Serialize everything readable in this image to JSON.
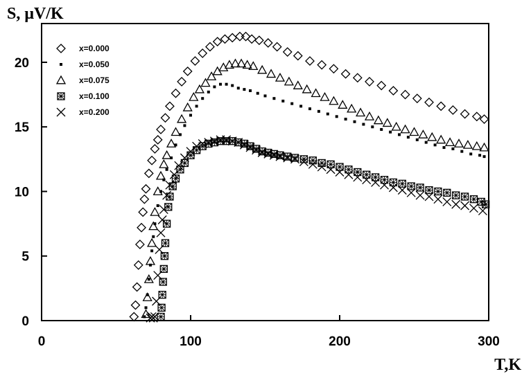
{
  "chart_data": {
    "type": "scatter",
    "xlabel": "T,K",
    "ylabel": "S, μV/K",
    "xlim": [
      0,
      300
    ],
    "ylim": [
      0,
      23
    ],
    "xticks": [
      "0",
      "100",
      "200",
      "300"
    ],
    "yticks": [
      "0",
      "5",
      "10",
      "15",
      "20"
    ],
    "legend_position": "top-left",
    "series": [
      {
        "name": "x=0.000",
        "marker": "diamond",
        "x": [
          62,
          63,
          64,
          65,
          66,
          67,
          68,
          69,
          70,
          72,
          74,
          76,
          78,
          80,
          83,
          86,
          90,
          94,
          98,
          103,
          108,
          113,
          118,
          123,
          128,
          133,
          137,
          141,
          146,
          152,
          158,
          165,
          172,
          180,
          188,
          196,
          204,
          212,
          220,
          228,
          236,
          244,
          252,
          260,
          268,
          276,
          284,
          292,
          297
        ],
        "y": [
          0.3,
          1.2,
          2.6,
          4.3,
          5.9,
          7.2,
          8.4,
          9.4,
          10.2,
          11.4,
          12.4,
          13.3,
          14.0,
          14.8,
          15.7,
          16.6,
          17.6,
          18.5,
          19.3,
          20.1,
          20.7,
          21.2,
          21.6,
          21.8,
          21.9,
          22.0,
          22.0,
          21.8,
          21.7,
          21.5,
          21.2,
          20.8,
          20.5,
          20.1,
          19.8,
          19.5,
          19.1,
          18.8,
          18.5,
          18.2,
          17.8,
          17.5,
          17.2,
          16.9,
          16.6,
          16.3,
          16.0,
          15.8,
          15.6
        ]
      },
      {
        "name": "x=0.050",
        "marker": "dot",
        "x": [
          69,
          70,
          71,
          72,
          73,
          74,
          75,
          76,
          78,
          80,
          82,
          84,
          87,
          90,
          93,
          96,
          100,
          104,
          108,
          112,
          116,
          120,
          124,
          128,
          132,
          136,
          140,
          145,
          150,
          156,
          162,
          168,
          174,
          180,
          186,
          192,
          198,
          204,
          210,
          216,
          222,
          228,
          234,
          240,
          246,
          252,
          258,
          264,
          270,
          276,
          282,
          288,
          294,
          297
        ],
        "y": [
          0.3,
          1.0,
          2.0,
          3.2,
          4.3,
          5.4,
          6.5,
          7.5,
          8.9,
          10.0,
          10.9,
          11.7,
          12.6,
          13.6,
          14.4,
          15.1,
          15.9,
          16.6,
          17.2,
          17.7,
          18.1,
          18.3,
          18.3,
          18.2,
          18.0,
          17.9,
          17.8,
          17.6,
          17.4,
          17.2,
          17.0,
          16.8,
          16.6,
          16.4,
          16.2,
          16.0,
          15.8,
          15.6,
          15.4,
          15.2,
          15.0,
          14.8,
          14.6,
          14.4,
          14.2,
          14.0,
          13.8,
          13.6,
          13.4,
          13.3,
          13.1,
          12.9,
          12.8,
          12.7
        ]
      },
      {
        "name": "x=0.075",
        "marker": "triangle",
        "x": [
          70,
          71,
          72,
          73,
          74,
          75,
          76,
          78,
          80,
          82,
          84,
          87,
          90,
          94,
          98,
          102,
          106,
          110,
          114,
          118,
          122,
          126,
          130,
          134,
          138,
          142,
          148,
          154,
          160,
          166,
          172,
          178,
          184,
          190,
          196,
          202,
          208,
          214,
          220,
          226,
          232,
          238,
          244,
          250,
          256,
          262,
          268,
          274,
          280,
          286,
          292,
          297
        ],
        "y": [
          0.5,
          1.8,
          3.2,
          4.6,
          6.0,
          7.3,
          8.4,
          10.0,
          11.2,
          12.1,
          12.8,
          13.7,
          14.6,
          15.6,
          16.5,
          17.3,
          17.9,
          18.4,
          18.9,
          19.3,
          19.6,
          19.8,
          19.9,
          19.9,
          19.8,
          19.7,
          19.4,
          19.1,
          18.8,
          18.5,
          18.2,
          17.9,
          17.6,
          17.3,
          17.0,
          16.7,
          16.4,
          16.1,
          15.8,
          15.5,
          15.3,
          15.0,
          14.8,
          14.6,
          14.4,
          14.2,
          14.0,
          13.8,
          13.7,
          13.6,
          13.5,
          13.4
        ]
      },
      {
        "name": "x=0.100",
        "marker": "boxed-cross",
        "x": [
          80,
          80.5,
          81,
          81.5,
          82,
          82.5,
          83,
          84,
          85,
          86,
          88,
          90,
          93,
          96,
          100,
          104,
          108,
          112,
          116,
          120,
          124,
          128,
          132,
          136,
          140,
          144,
          148,
          152,
          156,
          160,
          165,
          170,
          176,
          182,
          188,
          194,
          200,
          206,
          212,
          218,
          224,
          230,
          236,
          242,
          248,
          254,
          260,
          266,
          272,
          278,
          284,
          290,
          295,
          298
        ],
        "y": [
          0.3,
          1.0,
          2.0,
          3.0,
          4.0,
          5.0,
          6.0,
          7.5,
          8.8,
          9.6,
          10.4,
          11.0,
          11.7,
          12.2,
          12.8,
          13.2,
          13.5,
          13.7,
          13.8,
          13.9,
          13.9,
          13.9,
          13.8,
          13.7,
          13.5,
          13.3,
          13.1,
          13.0,
          12.9,
          12.8,
          12.7,
          12.6,
          12.5,
          12.4,
          12.2,
          12.1,
          11.9,
          11.7,
          11.5,
          11.3,
          11.1,
          10.9,
          10.7,
          10.6,
          10.4,
          10.3,
          10.1,
          10.0,
          9.9,
          9.7,
          9.6,
          9.4,
          9.2,
          9.0
        ]
      },
      {
        "name": "x=0.200",
        "marker": "x",
        "x": [
          73,
          74,
          75,
          76,
          77,
          78,
          79,
          80,
          81,
          82,
          84,
          86,
          89,
          92,
          96,
          100,
          104,
          108,
          112,
          116,
          120,
          124,
          128,
          132,
          136,
          140,
          144,
          148,
          152,
          156,
          160,
          165,
          170,
          176,
          182,
          188,
          194,
          200,
          206,
          212,
          218,
          224,
          230,
          236,
          242,
          248,
          254,
          260,
          266,
          272,
          278,
          284,
          290,
          296
        ],
        "y": [
          0.2,
          0.3,
          0.2,
          0.3,
          1.5,
          3.5,
          5.5,
          6.8,
          7.8,
          8.6,
          9.7,
          10.5,
          11.3,
          12.0,
          12.6,
          13.1,
          13.5,
          13.7,
          13.8,
          13.9,
          14.0,
          14.0,
          13.9,
          13.8,
          13.6,
          13.4,
          13.2,
          13.0,
          12.9,
          12.8,
          12.7,
          12.6,
          12.5,
          12.3,
          12.1,
          11.9,
          11.7,
          11.5,
          11.3,
          11.1,
          10.9,
          10.7,
          10.5,
          10.3,
          10.1,
          9.9,
          9.7,
          9.6,
          9.4,
          9.2,
          9.0,
          8.9,
          8.7,
          8.5
        ]
      }
    ]
  }
}
